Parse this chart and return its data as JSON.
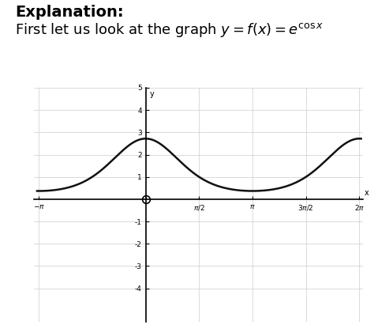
{
  "title_bold": "Explanation:",
  "subtitle": "First let us look at the graph $y = f(x) = e^{\\mathrm{cos}\\, x}$",
  "x_min": -3.14159265,
  "x_max": 6.2831853,
  "y_min": -5.5,
  "y_max": 5.0,
  "curve_color": "#111111",
  "curve_linewidth": 1.8,
  "grid_color": "#cccccc",
  "grid_linewidth": 0.5,
  "background_color": "#ffffff",
  "axis_color": "#000000",
  "text_color": "#000000",
  "title_fontsize": 14,
  "subtitle_fontsize": 13
}
